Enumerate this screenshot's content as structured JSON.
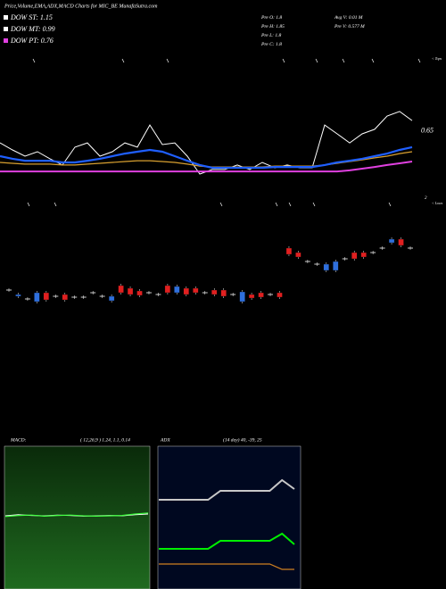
{
  "header": {
    "title": "Price,Volume,EMA,ADX,MACD Charts for MIC_BE MunafaSutra.com"
  },
  "legend": [
    {
      "label": "DOW ST:",
      "value": 1.15
    },
    {
      "label": "DOW MT:",
      "value": 0.99
    },
    {
      "label": "DOW PT:",
      "value": 0.76
    }
  ],
  "stats": [
    {
      "label": "Pre  O:",
      "value": 1.8
    },
    {
      "label": "Pre  H:",
      "value": 1.85
    },
    {
      "label": "Pre  L:",
      "value": 1.8
    },
    {
      "label": "Pre  C:",
      "value": 1.8
    },
    {
      "label": "Avg V:",
      "value": "0.01 M"
    },
    {
      "label": "Pre  V:",
      "value": "0.577 M"
    }
  ],
  "markers": {
    "tops": "< Tops",
    "lows": "< Lows"
  },
  "chart_data": [
    {
      "type": "line",
      "price_label": 0.65,
      "ylim": [
        0.45,
        0.99
      ],
      "categories": [
        null,
        null,
        null,
        null,
        null,
        null,
        null,
        null,
        null,
        null,
        null,
        null,
        null,
        null,
        null,
        null,
        null,
        null,
        null,
        null,
        null,
        null,
        null,
        null,
        null,
        null,
        null,
        null,
        null,
        null,
        null,
        null,
        null,
        null
      ],
      "series": [
        {
          "color": "#ffffff",
          "values": [
            0.595,
            0.562,
            0.533,
            0.554,
            0.521,
            0.492,
            0.575,
            0.595,
            0.533,
            0.554,
            0.595,
            0.575,
            0.678,
            0.587,
            0.595,
            0.533,
            0.45,
            0.471,
            0.471,
            0.492,
            0.471,
            0.504,
            0.479,
            0.492,
            0.479,
            0.479,
            0.678,
            0.637,
            0.595,
            0.637,
            0.658,
            0.72,
            0.741,
            0.699
          ]
        },
        {
          "color": "#d9a030",
          "values": [
            0.504,
            0.5,
            0.496,
            0.496,
            0.496,
            0.492,
            0.492,
            0.496,
            0.5,
            0.504,
            0.508,
            0.512,
            0.512,
            0.508,
            0.504,
            0.496,
            0.487,
            0.483,
            0.483,
            0.483,
            0.483,
            0.483,
            0.487,
            0.487,
            0.487,
            0.487,
            0.492,
            0.5,
            0.508,
            0.516,
            0.525,
            0.533,
            0.545,
            0.554
          ]
        },
        {
          "color": "#1f5fff",
          "values": [
            0.533,
            0.521,
            0.512,
            0.512,
            0.512,
            0.504,
            0.504,
            0.512,
            0.521,
            0.533,
            0.545,
            0.554,
            0.562,
            0.554,
            0.533,
            0.512,
            0.492,
            0.479,
            0.479,
            0.479,
            0.479,
            0.479,
            0.483,
            0.483,
            0.483,
            0.483,
            0.492,
            0.504,
            0.512,
            0.521,
            0.533,
            0.545,
            0.562,
            0.575
          ]
        },
        {
          "color": "#e040e0",
          "values": [
            0.462,
            0.462,
            0.462,
            0.462,
            0.462,
            0.462,
            0.462,
            0.462,
            0.462,
            0.462,
            0.462,
            0.462,
            0.462,
            0.462,
            0.462,
            0.462,
            0.462,
            0.462,
            0.462,
            0.462,
            0.462,
            0.462,
            0.462,
            0.462,
            0.462,
            0.462,
            0.462,
            0.462,
            0.467,
            0.475,
            0.483,
            0.492,
            0.5,
            0.508
          ]
        }
      ]
    },
    {
      "type": "candlestick",
      "annotation": "2",
      "ylim": [
        0.4,
        2.0
      ],
      "up_color": "#2f6fdc",
      "down_color": "#e02020",
      "open": [
        0.8,
        0.688,
        0.64,
        0.592,
        0.752,
        0.688,
        0.72,
        0.672,
        0.672,
        0.752,
        0.688,
        0.608,
        0.88,
        0.832,
        0.784,
        0.752,
        0.72,
        0.88,
        0.752,
        0.832,
        0.832,
        0.752,
        0.8,
        0.8,
        0.72,
        0.592,
        0.72,
        0.752,
        0.72,
        0.752,
        1.552,
        1.472,
        1.312,
        1.264,
        1.152,
        1.152,
        1.36,
        1.472,
        1.472,
        1.472,
        1.552,
        1.648,
        1.712,
        1.552
      ],
      "close": [
        0.8,
        0.72,
        0.64,
        0.752,
        0.624,
        0.688,
        0.624,
        0.672,
        0.672,
        0.752,
        0.688,
        0.688,
        0.752,
        0.72,
        0.704,
        0.752,
        0.72,
        0.752,
        0.864,
        0.72,
        0.752,
        0.752,
        0.72,
        0.688,
        0.72,
        0.768,
        0.656,
        0.672,
        0.72,
        0.672,
        1.44,
        1.392,
        1.312,
        1.264,
        1.264,
        1.312,
        1.36,
        1.36,
        1.392,
        1.472,
        1.552,
        1.712,
        1.6,
        1.552
      ]
    },
    {
      "type": "line",
      "label": "MACD:",
      "params": "( 12,26,9 ) 1.24, 1.1, 0.14",
      "ylim": [
        -2,
        2
      ],
      "categories": [
        null,
        null,
        null,
        null,
        null,
        null,
        null,
        null,
        null,
        null,
        null,
        null
      ],
      "series": [
        {
          "color": "#ffffff",
          "values": [
            0.05,
            0.08,
            0.06,
            0.05,
            0.07,
            0.06,
            0.04,
            0.05,
            0.06,
            0.05,
            0.08,
            0.1
          ]
        },
        {
          "color": "#40ff40",
          "values": [
            0.03,
            0.06,
            0.07,
            0.04,
            0.06,
            0.07,
            0.05,
            0.04,
            0.05,
            0.06,
            0.1,
            0.13
          ]
        }
      ]
    },
    {
      "type": "line",
      "label": "ADX",
      "params": "(14  day) 40, -39, 25",
      "ylim": [
        0,
        100
      ],
      "categories": [
        null,
        null,
        null,
        null,
        null,
        null,
        null,
        null,
        null,
        null,
        null,
        null
      ],
      "series": [
        {
          "color": "#c8c8c8",
          "values": [
            62.5,
            62.5,
            62.5,
            62.5,
            62.5,
            68.75,
            68.75,
            68.75,
            68.75,
            68.75,
            76.25,
            70
          ]
        },
        {
          "color": "#00ee00",
          "values": [
            28.1,
            28.1,
            28.1,
            28.1,
            28.1,
            33.75,
            33.75,
            33.75,
            33.75,
            33.75,
            38.75,
            31.25
          ]
        },
        {
          "color": "#d08020",
          "values": [
            17.5,
            17.5,
            17.5,
            17.5,
            17.5,
            17.5,
            17.5,
            17.5,
            17.5,
            17.5,
            13.75,
            13.75
          ]
        }
      ]
    }
  ]
}
